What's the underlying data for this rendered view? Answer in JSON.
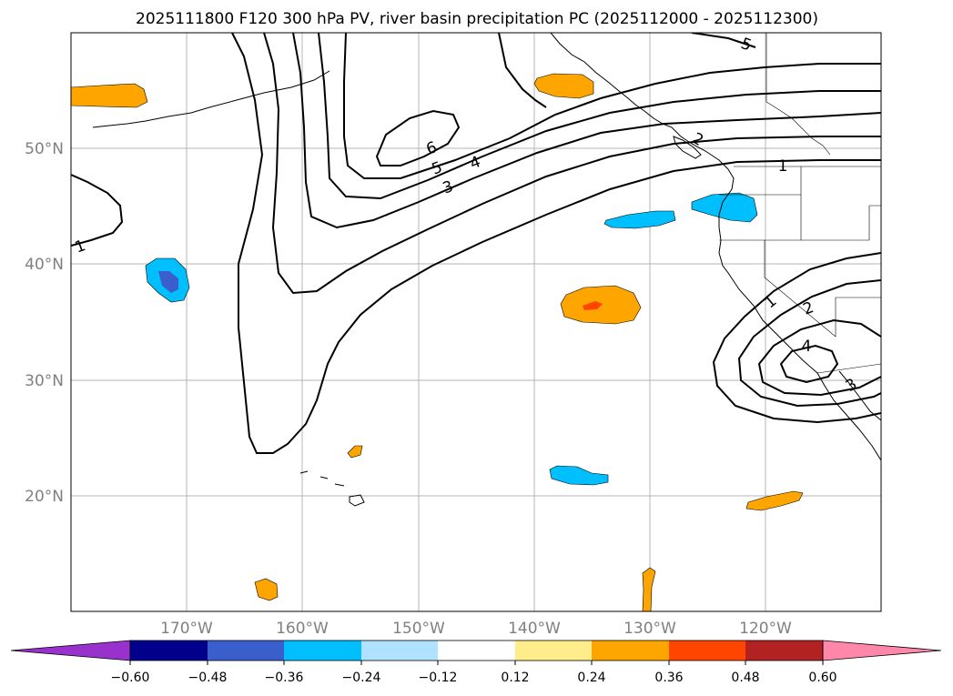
{
  "title": "2025111800 F120 300 hPa PV, river basin precipitation PC (2025112000 - 2025112300)",
  "map": {
    "lon_range": [
      -180,
      -110
    ],
    "lat_range": [
      10,
      60
    ],
    "lat_ticks": [
      {
        "value": 20,
        "label": "20°N"
      },
      {
        "value": 30,
        "label": "30°N"
      },
      {
        "value": 40,
        "label": "40°N"
      },
      {
        "value": 50,
        "label": "50°N"
      }
    ],
    "lon_ticks": [
      {
        "value": -170,
        "label": "170°W"
      },
      {
        "value": -160,
        "label": "160°W"
      },
      {
        "value": -150,
        "label": "150°W"
      },
      {
        "value": -140,
        "label": "140°W"
      },
      {
        "value": -130,
        "label": "130°W"
      },
      {
        "value": -120,
        "label": "120°W"
      }
    ],
    "grid": true
  },
  "pv_contour_labels": [
    "1",
    "1",
    "1",
    "2",
    "2",
    "3",
    "3",
    "4",
    "4",
    "5",
    "5",
    "6"
  ],
  "precip_regions": [
    {
      "category": "positive",
      "level": "0.24–0.36",
      "location": "western edge near 55°N"
    },
    {
      "category": "positive",
      "level": "0.24–0.36",
      "location": "Gulf of Alaska near 56°N 138°W"
    },
    {
      "category": "negative",
      "level": "-0.36 to -0.48 core",
      "location": "near 39°N 172°W"
    },
    {
      "category": "negative",
      "level": "-0.24 to -0.36",
      "location": "near 44°N 136°W"
    },
    {
      "category": "negative",
      "level": "-0.24 to -0.36",
      "location": "Pacific Northwest coast near 45°N"
    },
    {
      "category": "positive",
      "level": "0.36–0.48 core",
      "location": "near 36°N 136°W"
    },
    {
      "category": "positive",
      "level": "0.24–0.36",
      "location": "near Hawaii 24°N 155°W"
    },
    {
      "category": "negative",
      "level": "-0.24 to -0.36",
      "location": "near 22°N 138°W"
    },
    {
      "category": "positive",
      "level": "0.24–0.36",
      "location": "near 20°N 120°W"
    },
    {
      "category": "positive",
      "level": "0.24–0.36",
      "location": "near 12°N 163°W"
    },
    {
      "category": "positive",
      "level": "0.24–0.36",
      "location": "near 12°N 130°W"
    }
  ],
  "colorbar": {
    "colors": [
      "#9932cc",
      "#00008b",
      "#3a5fcd",
      "#00bfff",
      "#b0e2ff",
      "#ffffff",
      "#ffec8b",
      "#ffa500",
      "#ff4500",
      "#b22222",
      "#ff88aa"
    ],
    "ticks": [
      "−0.60",
      "−0.48",
      "−0.36",
      "−0.24",
      "−0.12",
      "0.12",
      "0.24",
      "0.36",
      "0.48",
      "0.60"
    ]
  }
}
